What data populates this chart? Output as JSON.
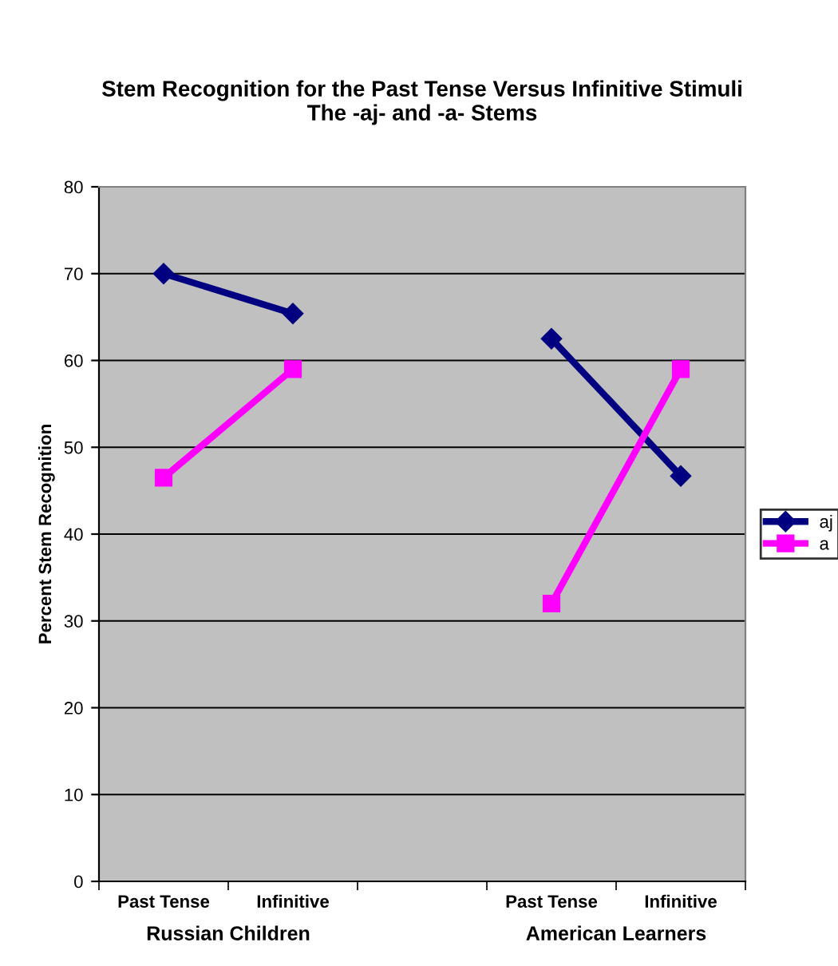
{
  "chart_data": {
    "type": "line",
    "title": "Stem Recognition for the Past Tense Versus Infinitive Stimuli\nThe -aj- and -a- Stems",
    "ylabel": "Percent Stem Recognition",
    "categories": [
      "Past Tense",
      "Infinitive",
      null,
      "Past Tense",
      "Infinitive"
    ],
    "series": [
      {
        "name": "aj",
        "color": "#000080",
        "marker": "diamond",
        "values": [
          70,
          65.4,
          null,
          62.5,
          46.7
        ]
      },
      {
        "name": "a",
        "color": "#ff00ff",
        "marker": "square",
        "values": [
          46.5,
          59,
          null,
          32,
          59
        ]
      }
    ],
    "annotations": [
      "Russian Children",
      "American Learners"
    ],
    "ylim": [
      0,
      80
    ],
    "yticks": [
      0,
      10,
      20,
      30,
      40,
      50,
      60,
      70,
      80
    ],
    "grid": "y",
    "legend": "right"
  }
}
